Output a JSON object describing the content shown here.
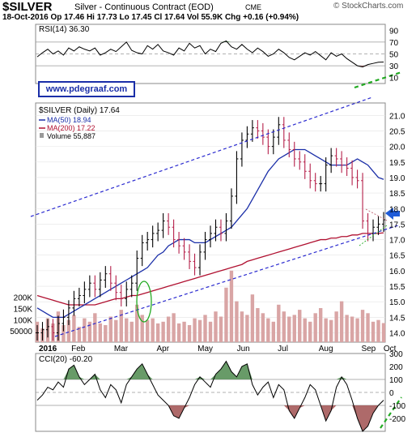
{
  "header": {
    "symbol": "$SILVER",
    "name": "Silver - Continuous Contract (EOD)",
    "exchange": "CME",
    "brand": "© StockCharts.com",
    "quote": "18-Oct-2016   Op 17.46  Hi 17.73  Lo 17.45  Cl 17.64  Vol 55.9K  Chg +0.16 (+0.94%)"
  },
  "url_label": "www.pdegraaf.com",
  "colors": {
    "ma50": "#1a2ea8",
    "ma200": "#b01030",
    "price_up": "#000000",
    "price_down": "#b5204a",
    "volume": "#d9a5a5",
    "fill_green": "#4e8a4e",
    "fill_red": "#a05050",
    "trend": "#2b2bd0",
    "green_dash": "#22aa22",
    "arrow": "#1e5bd8"
  },
  "chart_data": [
    {
      "type": "line",
      "panel": "RSI",
      "legend": "RSI(14) 36.30",
      "yticks": [
        "90",
        "70",
        "50",
        "30",
        "10"
      ],
      "ylim": [
        0,
        100
      ],
      "x": [
        0,
        3,
        6,
        9,
        12,
        15,
        18,
        21,
        24,
        27,
        30,
        33,
        36,
        39,
        42,
        45,
        48,
        51,
        54,
        57,
        60,
        63,
        66,
        69,
        72,
        75,
        78,
        81,
        84,
        87,
        90,
        93,
        96,
        99,
        102,
        105,
        108,
        111,
        114,
        117,
        120,
        123,
        126,
        129,
        132,
        135,
        138,
        141,
        144,
        147,
        150,
        153,
        156,
        159,
        162,
        165,
        168,
        171,
        174,
        177,
        180,
        183,
        186,
        189,
        192,
        195,
        198
      ],
      "values": [
        45,
        52,
        58,
        50,
        55,
        48,
        60,
        55,
        62,
        58,
        55,
        60,
        48,
        52,
        58,
        54,
        62,
        70,
        56,
        52,
        50,
        64,
        58,
        66,
        55,
        52,
        48,
        60,
        55,
        68,
        60,
        64,
        50,
        58,
        54,
        68,
        72,
        62,
        58,
        66,
        58,
        52,
        60,
        54,
        46,
        50,
        58,
        52,
        44,
        40,
        46,
        52,
        48,
        54,
        47,
        40,
        52,
        46,
        50,
        42,
        36,
        30,
        28,
        32,
        34,
        36,
        36.3
      ]
    },
    {
      "type": "line",
      "panel": "Price",
      "title": "$SILVER (Daily) 17.64",
      "series": [
        {
          "name": "MA(50) 18.94"
        },
        {
          "name": "MA(200) 17.22"
        },
        {
          "name": "Volume 55,887"
        }
      ],
      "y_right_ticks": [
        "21.0",
        "20.5",
        "20.0",
        "19.5",
        "19.0",
        "18.5",
        "18.0",
        "17.5",
        "17.0",
        "16.5",
        "16.0",
        "15.5",
        "15.0",
        "14.5",
        "14.0"
      ],
      "volume_ticks": [
        "200K",
        "150K",
        "100K",
        "50000"
      ],
      "ylim": [
        13.7,
        21.4
      ],
      "x_labels": [
        "2016",
        "Feb",
        "Mar",
        "Apr",
        "May",
        "Jun",
        "Jul",
        "Aug",
        "Sep",
        "Oct"
      ],
      "x": [
        0,
        3,
        6,
        9,
        12,
        15,
        18,
        21,
        24,
        27,
        30,
        33,
        36,
        39,
        42,
        45,
        48,
        51,
        54,
        57,
        60,
        63,
        66,
        69,
        72,
        75,
        78,
        81,
        84,
        87,
        90,
        93,
        96,
        99,
        102,
        105,
        108,
        111,
        114,
        117,
        120,
        123,
        126,
        129,
        132,
        135,
        138,
        141,
        144,
        147,
        150,
        153,
        156,
        159,
        162,
        165,
        168,
        171,
        174,
        177,
        180,
        183,
        186,
        189,
        192,
        195,
        198
      ],
      "close": [
        14.0,
        14.1,
        14.2,
        14.0,
        14.3,
        14.5,
        14.8,
        15.1,
        15.2,
        15.4,
        15.6,
        15.4,
        15.7,
        15.9,
        15.6,
        15.3,
        15.1,
        15.4,
        15.6,
        16.4,
        16.9,
        17.0,
        17.2,
        17.3,
        17.6,
        17.4,
        17.0,
        16.8,
        16.6,
        16.3,
        16.1,
        16.6,
        17.0,
        17.2,
        17.4,
        17.2,
        17.6,
        18.4,
        19.6,
        20.2,
        20.4,
        20.6,
        20.5,
        20.3,
        20.0,
        20.3,
        20.7,
        20.2,
        19.9,
        19.6,
        19.5,
        19.2,
        18.9,
        18.8,
        18.8,
        19.4,
        19.7,
        19.6,
        19.4,
        19.3,
        19.0,
        18.9,
        17.6,
        17.2,
        17.4,
        17.5,
        17.64
      ],
      "ma50": [
        14.8,
        14.7,
        14.6,
        14.5,
        14.5,
        14.5,
        14.6,
        14.7,
        14.8,
        14.9,
        15.0,
        15.1,
        15.2,
        15.3,
        15.4,
        15.5,
        15.6,
        15.7,
        15.8,
        15.9,
        16.0,
        16.1,
        16.3,
        16.5,
        16.6,
        16.8,
        16.9,
        17.0,
        17.0,
        17.0,
        16.9,
        16.9,
        16.9,
        17.0,
        17.1,
        17.2,
        17.3,
        17.4,
        17.6,
        17.8,
        18.0,
        18.3,
        18.6,
        18.9,
        19.2,
        19.4,
        19.6,
        19.7,
        19.8,
        19.9,
        19.9,
        19.9,
        19.8,
        19.7,
        19.6,
        19.5,
        19.4,
        19.4,
        19.4,
        19.4,
        19.5,
        19.6,
        19.5,
        19.4,
        19.2,
        19.0,
        18.94
      ],
      "ma200": [
        15.2,
        15.15,
        15.1,
        15.05,
        15.0,
        14.95,
        14.9,
        14.9,
        14.9,
        14.9,
        14.9,
        14.9,
        14.95,
        15.0,
        15.05,
        15.1,
        15.1,
        15.15,
        15.2,
        15.2,
        15.25,
        15.3,
        15.35,
        15.4,
        15.45,
        15.5,
        15.55,
        15.6,
        15.65,
        15.7,
        15.75,
        15.8,
        15.85,
        15.9,
        15.95,
        16.0,
        16.05,
        16.1,
        16.15,
        16.2,
        16.3,
        16.35,
        16.4,
        16.45,
        16.5,
        16.55,
        16.6,
        16.65,
        16.7,
        16.75,
        16.8,
        16.85,
        16.9,
        16.95,
        17.0,
        17.0,
        17.05,
        17.05,
        17.1,
        17.1,
        17.15,
        17.15,
        17.2,
        17.2,
        17.2,
        17.2,
        17.22
      ],
      "volume": [
        60,
        40,
        70,
        55,
        90,
        50,
        65,
        80,
        45,
        70,
        60,
        85,
        55,
        50,
        75,
        65,
        95,
        70,
        60,
        110,
        80,
        65,
        70,
        55,
        60,
        75,
        85,
        55,
        60,
        50,
        70,
        65,
        80,
        60,
        90,
        75,
        160,
        210,
        120,
        90,
        80,
        140,
        100,
        85,
        70,
        60,
        110,
        90,
        75,
        80,
        95,
        70,
        60,
        85,
        100,
        70,
        65,
        90,
        120,
        80,
        75,
        70,
        95,
        85,
        60,
        65,
        56
      ]
    },
    {
      "type": "line",
      "panel": "CCI",
      "legend": "CCI(20) -60.20",
      "yticks": [
        "300",
        "200",
        "100",
        "0",
        "-100",
        "-200"
      ],
      "ylim": [
        -300,
        300
      ],
      "x": [
        0,
        3,
        6,
        9,
        12,
        15,
        18,
        21,
        24,
        27,
        30,
        33,
        36,
        39,
        42,
        45,
        48,
        51,
        54,
        57,
        60,
        63,
        66,
        69,
        72,
        75,
        78,
        81,
        84,
        87,
        90,
        93,
        96,
        99,
        102,
        105,
        108,
        111,
        114,
        117,
        120,
        123,
        126,
        129,
        132,
        135,
        138,
        141,
        144,
        147,
        150,
        153,
        156,
        159,
        162,
        165,
        168,
        171,
        174,
        177,
        180,
        183,
        186,
        189,
        192,
        195,
        198
      ],
      "values": [
        -60,
        -20,
        40,
        20,
        80,
        40,
        180,
        210,
        120,
        60,
        100,
        140,
        20,
        -40,
        60,
        20,
        -80,
        60,
        120,
        180,
        220,
        140,
        60,
        -20,
        -60,
        -100,
        -180,
        -200,
        -120,
        -40,
        60,
        120,
        80,
        40,
        140,
        180,
        240,
        160,
        120,
        200,
        220,
        60,
        -20,
        40,
        80,
        -40,
        60,
        20,
        -140,
        -200,
        -120,
        -40,
        60,
        20,
        -100,
        -220,
        -140,
        40,
        120,
        60,
        -60,
        -200,
        -300,
        -260,
        -160,
        -100,
        -60.2
      ]
    }
  ]
}
